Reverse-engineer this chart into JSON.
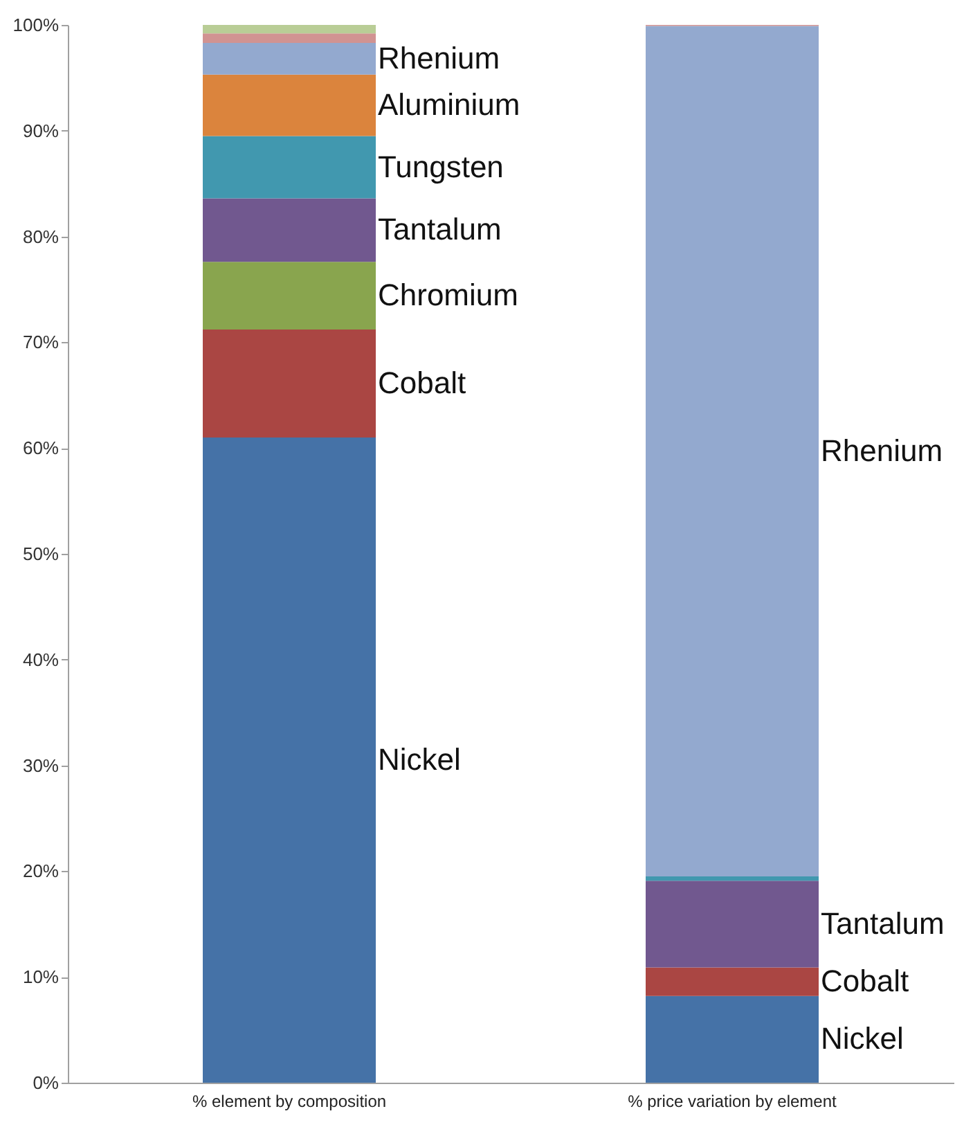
{
  "chart_data": {
    "type": "bar",
    "stacked": true,
    "categories": [
      "% element by composition",
      "% price variation by element"
    ],
    "series": [
      {
        "name": "Nickel",
        "color": "#4572a7",
        "values": [
          61.0,
          8.2
        ]
      },
      {
        "name": "Cobalt",
        "color": "#aa4643",
        "values": [
          10.2,
          2.7
        ]
      },
      {
        "name": "Chromium",
        "color": "#89a54e",
        "values": [
          6.4,
          0
        ]
      },
      {
        "name": "Tantalum",
        "color": "#71588f",
        "values": [
          6.0,
          8.2
        ]
      },
      {
        "name": "Tungsten",
        "color": "#4198af",
        "values": [
          5.9,
          0.4
        ]
      },
      {
        "name": "Aluminium",
        "color": "#db843d",
        "values": [
          5.8,
          0
        ]
      },
      {
        "name": "Rhenium",
        "color": "#93a9cf",
        "values": [
          3.0,
          80.4
        ]
      },
      {
        "color": "#d19392",
        "values": [
          0.9,
          0.1
        ]
      },
      {
        "color": "#b9cd96",
        "values": [
          0.8,
          0
        ]
      }
    ],
    "ylim": [
      0,
      100
    ],
    "yticks": [
      {
        "value": 0,
        "label": "0%"
      },
      {
        "value": 10,
        "label": "10%"
      },
      {
        "value": 20,
        "label": "20%"
      },
      {
        "value": 30,
        "label": "30%"
      },
      {
        "value": 40,
        "label": "40%"
      },
      {
        "value": 50,
        "label": "50%"
      },
      {
        "value": 60,
        "label": "60%"
      },
      {
        "value": 70,
        "label": "70%"
      },
      {
        "value": 80,
        "label": "80%"
      },
      {
        "value": 90,
        "label": "90%"
      },
      {
        "value": 100,
        "label": "100%"
      }
    ],
    "grid": false,
    "legend": false
  }
}
